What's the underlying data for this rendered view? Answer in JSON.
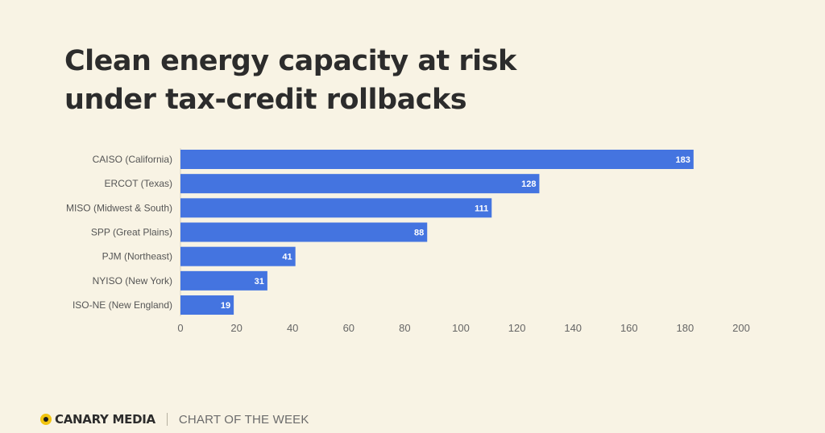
{
  "header": {
    "title_line1": "Clean energy capacity at risk",
    "title_line2": "under tax-credit rollbacks"
  },
  "footer": {
    "brand": "CANARY MEDIA",
    "tagline": "CHART OF THE WEEK",
    "logo_icon": "canary-dot-icon",
    "logo_color": "#f1c40f"
  },
  "chart_data": {
    "type": "bar",
    "orientation": "horizontal",
    "categories": [
      "CAISO (California)",
      "ERCOT (Texas)",
      "MISO (Midwest & South)",
      "SPP (Great Plains)",
      "PJM (Northeast)",
      "NYISO (New York)",
      "ISO-NE (New England)"
    ],
    "values": [
      183,
      128,
      111,
      88,
      41,
      31,
      19
    ],
    "xlim": [
      0,
      200
    ],
    "xticks": [
      0,
      20,
      40,
      60,
      80,
      100,
      120,
      140,
      160,
      180,
      200
    ],
    "title": "",
    "xlabel": "",
    "ylabel": "",
    "grid": false,
    "bar_color": "#4474e0",
    "data_labels": true
  }
}
